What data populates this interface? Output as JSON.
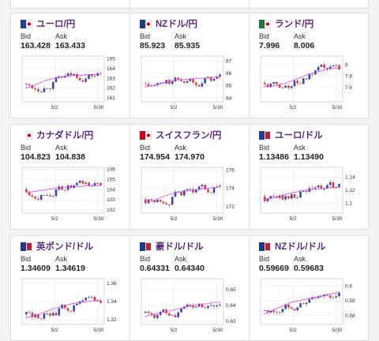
{
  "labels": {
    "bid": "Bid",
    "ask": "Ask"
  },
  "cards": [
    {
      "title": "ユーロ/円",
      "bid": "163.428",
      "ask": "163.433",
      "flags": [
        "eu",
        "jp"
      ],
      "ylim": [
        160.6,
        165.3
      ],
      "yticks": [
        165,
        164,
        163,
        162,
        161
      ],
      "xticks": [
        "5/2",
        "5/30"
      ],
      "ma": [
        162.0,
        162.2,
        162.5,
        162.8,
        163.0,
        163.1,
        163.2,
        163.3,
        163.3,
        163.4,
        163.4,
        163.5
      ]
    },
    {
      "title": "NZドル/円",
      "bid": "85.923",
      "ask": "85.935",
      "flags": [
        "nz",
        "jp"
      ],
      "ylim": [
        83.7,
        87.4
      ],
      "yticks": [
        87,
        86,
        85,
        84
      ],
      "xticks": [
        "5/2",
        "5/30"
      ],
      "ma": [
        84.9,
        85.0,
        85.1,
        85.3,
        85.4,
        85.5,
        85.5,
        85.6,
        85.6,
        85.6,
        85.7,
        85.7
      ]
    },
    {
      "title": "ランド/円",
      "bid": "7.996",
      "ask": "8.006",
      "flags": [
        "za",
        "jp"
      ],
      "ylim": [
        7.35,
        8.15
      ],
      "yticks": [
        8,
        7.8,
        7.6
      ],
      "ytick_labels": [
        "8",
        "7.8",
        "7.6"
      ],
      "xticks": [
        "5/2",
        "5/30"
      ],
      "ma": [
        7.62,
        7.62,
        7.64,
        7.67,
        7.71,
        7.76,
        7.81,
        7.85,
        7.88,
        7.91,
        7.93,
        7.95
      ]
    },
    {
      "title": "カナダドル/円",
      "bid": "104.823",
      "ask": "104.838",
      "flags": [
        "ca",
        "jp"
      ],
      "ylim": [
        101.7,
        106.2
      ],
      "yticks": [
        106,
        105,
        104,
        103,
        102
      ],
      "xticks": [
        "5/2",
        "5/30"
      ],
      "ma": [
        103.7,
        103.8,
        103.9,
        104.0,
        104.1,
        104.2,
        104.2,
        104.3,
        104.3,
        104.4,
        104.4,
        104.4
      ]
    },
    {
      "title": "スイスフラン/円",
      "bid": "174.954",
      "ask": "174.970",
      "flags": [
        "ch",
        "jp"
      ],
      "ylim": [
        171.3,
        176.3
      ],
      "yticks": [
        176,
        174,
        172
      ],
      "xticks": [
        "5/2",
        "5/30"
      ],
      "ma": [
        172.4,
        172.6,
        172.9,
        173.2,
        173.4,
        173.6,
        173.7,
        173.8,
        173.9,
        174.0,
        174.1,
        174.2
      ]
    },
    {
      "title": "ユーロ/ドル",
      "bid": "1.13486",
      "ask": "1.13490",
      "flags": [
        "eu",
        "us"
      ],
      "ylim": [
        1.085,
        1.155
      ],
      "yticks": [
        1.14,
        1.12,
        1.1
      ],
      "ytick_labels": [
        "1.14",
        "1.12",
        "1.1"
      ],
      "xticks": [
        "5/2",
        "5/30"
      ],
      "ma": [
        1.105,
        1.107,
        1.11,
        1.113,
        1.116,
        1.118,
        1.12,
        1.121,
        1.122,
        1.123,
        1.124,
        1.125
      ]
    },
    {
      "title": "英ポンド/ドル",
      "bid": "1.34609",
      "ask": "1.34619",
      "flags": [
        "gb",
        "us"
      ],
      "ylim": [
        1.315,
        1.365
      ],
      "yticks": [
        1.36,
        1.34,
        1.32
      ],
      "xticks": [
        "5/2",
        "5/30"
      ],
      "ma": [
        1.322,
        1.324,
        1.326,
        1.329,
        1.332,
        1.334,
        1.336,
        1.338,
        1.339,
        1.34,
        1.341,
        1.342
      ]
    },
    {
      "title": "豪ドル/ドル",
      "bid": "0.64331",
      "ask": "0.64340",
      "flags": [
        "au",
        "us"
      ],
      "ylim": [
        0.628,
        0.657
      ],
      "yticks": [
        0.65,
        0.64,
        0.63
      ],
      "xticks": [
        "5/2",
        "5/30"
      ],
      "ma": [
        0.633,
        0.634,
        0.635,
        0.636,
        0.637,
        0.638,
        0.639,
        0.64,
        0.641,
        0.641,
        0.642,
        0.642
      ]
    },
    {
      "title": "NZドル/ドル",
      "bid": "0.59669",
      "ask": "0.59683",
      "flags": [
        "nz",
        "us"
      ],
      "ylim": [
        0.574,
        0.605
      ],
      "yticks": [
        0.6,
        0.59,
        0.58
      ],
      "ytick_labels": [
        "0.6",
        "0.59",
        "0.58"
      ],
      "xticks": [
        "5/2",
        "5/30"
      ],
      "ma": [
        0.581,
        0.583,
        0.585,
        0.587,
        0.589,
        0.59,
        0.591,
        0.592,
        0.593,
        0.594,
        0.595,
        0.596
      ]
    }
  ],
  "colors": {
    "title": "#5a2a82",
    "up": "#ffffff",
    "down": "#e53935",
    "body_up": "#3949ab",
    "ma": "#e040fb",
    "grid": "#e6e6e6"
  }
}
